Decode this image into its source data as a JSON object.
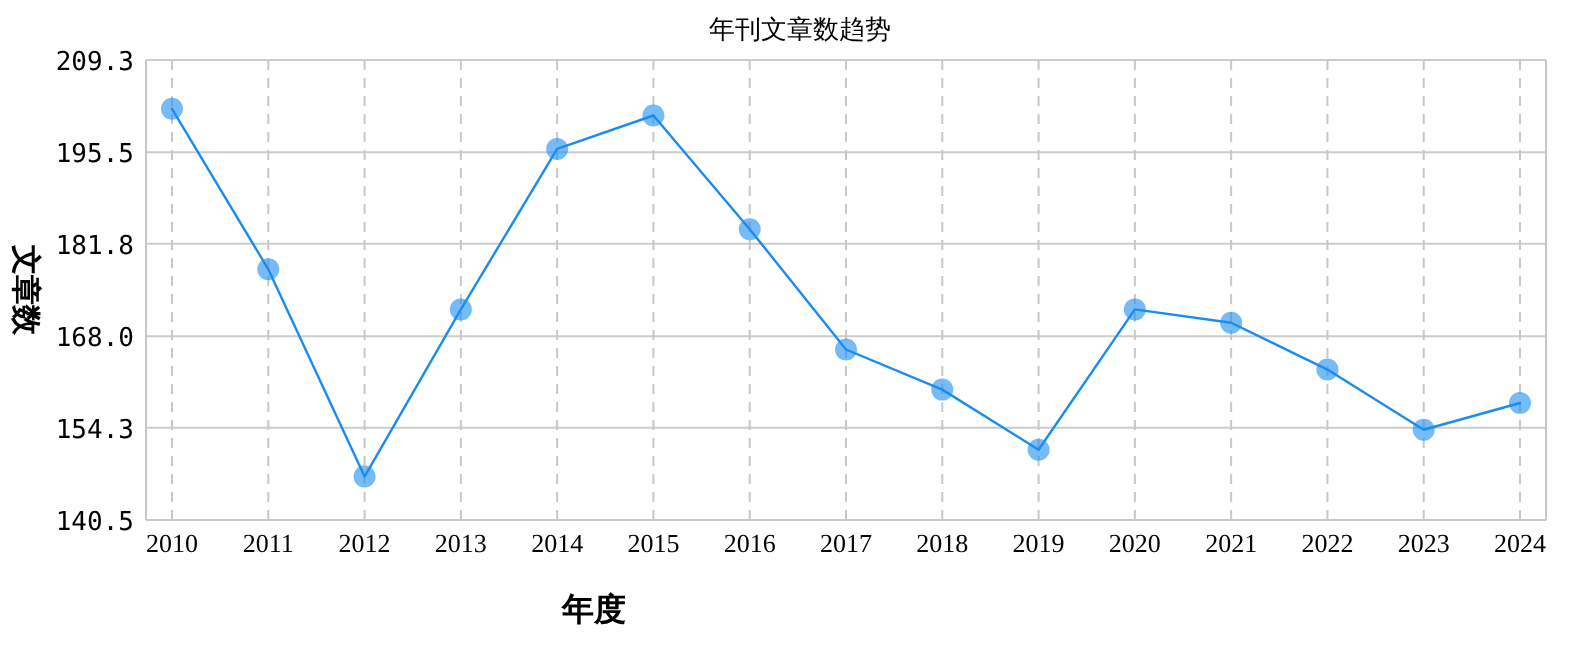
{
  "chart_data": {
    "type": "line",
    "title": "年刊文章数趋势",
    "xlabel": "年度",
    "ylabel": "文章数",
    "categories": [
      "2010",
      "2011",
      "2012",
      "2013",
      "2014",
      "2015",
      "2016",
      "2017",
      "2018",
      "2019",
      "2020",
      "2021",
      "2022",
      "2023",
      "2024"
    ],
    "series": [
      {
        "color": "#1a8cf0",
        "values": [
          202,
          178,
          147,
          172,
          196,
          201,
          184,
          166,
          160,
          151,
          172,
          170,
          163,
          154,
          158
        ]
      }
    ],
    "ylim": [
      140.5,
      209.3
    ],
    "yticks": [
      {
        "value": 140.5,
        "label": "140.5"
      },
      {
        "value": 154.3,
        "label": "154.3"
      },
      {
        "value": 168.0,
        "label": "168.0"
      },
      {
        "value": 181.8,
        "label": "181.8"
      },
      {
        "value": 195.5,
        "label": "195.5"
      },
      {
        "value": 209.3,
        "label": "209.3"
      }
    ],
    "grid": true,
    "marker": "circle",
    "line_style": "solid"
  }
}
